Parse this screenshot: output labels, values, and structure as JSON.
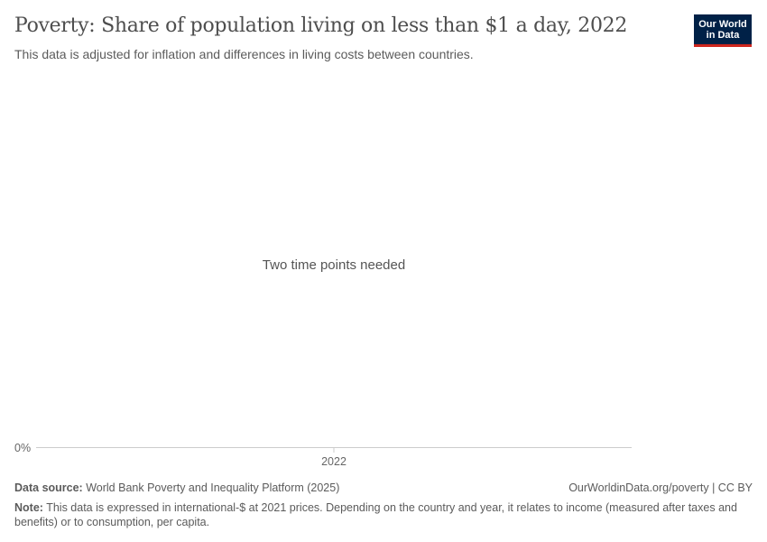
{
  "header": {
    "title": "Poverty: Share of population living on less than $1 a day, 2022",
    "subtitle": "This data is adjusted for inflation and differences in living costs between countries.",
    "logo_text": "Our World in Data"
  },
  "chart_data": {
    "type": "line",
    "title": "Poverty: Share of population living on less than $1 a day, 2022",
    "x_ticks": [
      "2022"
    ],
    "y_ticks": [
      "0%"
    ],
    "series": [],
    "message": "Two time points needed",
    "grid": false
  },
  "footer": {
    "source_label": "Data source:",
    "source_text": "World Bank Poverty and Inequality Platform (2025)",
    "url": "OurWorldinData.org/poverty | CC BY",
    "note_label": "Note:",
    "note_text": "This data is expressed in international-$ at 2021 prices. Depending on the country and year, it relates to income (measured after taxes and benefits) or to consumption, per capita."
  },
  "colors": {
    "logo_bg": "#002147",
    "logo_accent": "#ce261e"
  }
}
